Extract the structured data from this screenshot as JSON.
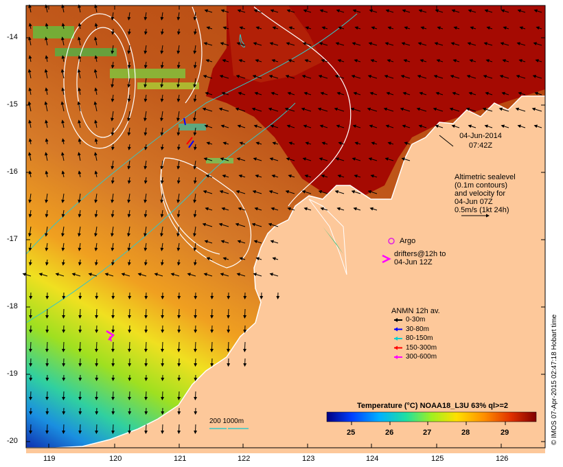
{
  "map": {
    "x_ticks": [
      "119",
      "120",
      "121",
      "122",
      "123",
      "124",
      "125",
      "126"
    ],
    "y_ticks": [
      "-14",
      "-15",
      "-16",
      "-17",
      "-18",
      "-19",
      "-20"
    ],
    "colors": {
      "land": "#fdc89a",
      "deep_red": "#a50a02",
      "sealevel_contour": "#ffffff",
      "isobath": "#34c7c7",
      "argo": "#e020e0"
    }
  },
  "annotations": {
    "date": "04-Jun-2014",
    "time": "07:42Z",
    "sealevel_lines": [
      "Altimetric sealevel",
      "(0.1m contours)",
      "and velocity for",
      "04-Jun 07Z",
      "0.5m/s (1kt 24h)"
    ],
    "argo_label": "Argo",
    "drifters_lines": [
      "drifters@12h to",
      "04-Jun 12Z"
    ],
    "isobath_label": "200  1000m"
  },
  "anmn_legend": {
    "title": "ANMN 12h av.",
    "items": [
      {
        "label": "0-30m",
        "color": "#000000"
      },
      {
        "label": "30-80m",
        "color": "#0000ff"
      },
      {
        "label": "80-150m",
        "color": "#00d0d0"
      },
      {
        "label": "150-300m",
        "color": "#ff0000"
      },
      {
        "label": "300-600m",
        "color": "#ff00ff"
      }
    ]
  },
  "colorbar": {
    "title": "Temperature (°C) NOAA18_L3U 63% ql>=2",
    "ticks": [
      "25",
      "26",
      "27",
      "28",
      "29"
    ]
  },
  "credit": "© IMOS 07-Apr-2015 02:47:18 Hobart time"
}
